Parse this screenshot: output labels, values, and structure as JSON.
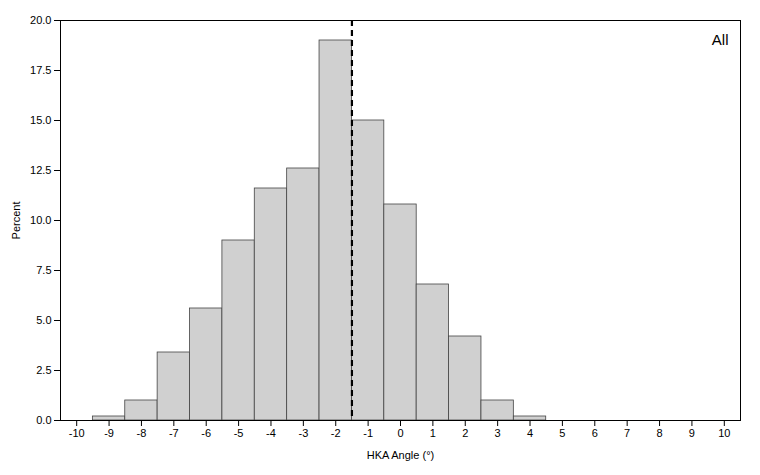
{
  "chart_data": {
    "type": "histogram",
    "bins": [
      -10.5,
      -9.5,
      -8.5,
      -7.5,
      -6.5,
      -5.5,
      -4.5,
      -3.5,
      -2.5,
      -1.5,
      -0.5,
      0.5,
      1.5,
      2.5,
      3.5,
      4.5,
      5.5,
      6.5,
      7.5,
      8.5,
      9.5,
      10.5
    ],
    "values": [
      0.0,
      0.2,
      1.0,
      3.4,
      5.6,
      9.0,
      11.6,
      12.6,
      19.0,
      15.0,
      10.8,
      6.8,
      4.2,
      1.0,
      0.2,
      0.0,
      0.0,
      0.0,
      0.0,
      0.0,
      0.0
    ],
    "color": "#d0d0d0",
    "xlabel": "HKA Angle (°)",
    "ylabel": "Percent",
    "annotation": "All",
    "vlines": [
      {
        "x": -1.5,
        "color": "#000000",
        "line_style": "dashed"
      }
    ],
    "xlim": [
      -10.5,
      10.5
    ],
    "ylim": [
      0,
      20.0
    ],
    "xticks": [
      -10,
      -9,
      -8,
      -7,
      -6,
      -5,
      -4,
      -3,
      -2,
      -1,
      0,
      1,
      2,
      3,
      4,
      5,
      6,
      7,
      8,
      9,
      10
    ],
    "yticks": [
      {
        "value": 0,
        "label": "0.0"
      },
      2.5,
      {
        "value": 5,
        "label": "5.0"
      },
      7.5,
      {
        "value": 10,
        "label": "10.0"
      },
      12.5,
      {
        "value": 15,
        "label": "15.0"
      },
      17.5,
      {
        "value": 20,
        "label": "20.0"
      }
    ],
    "grid": false
  }
}
